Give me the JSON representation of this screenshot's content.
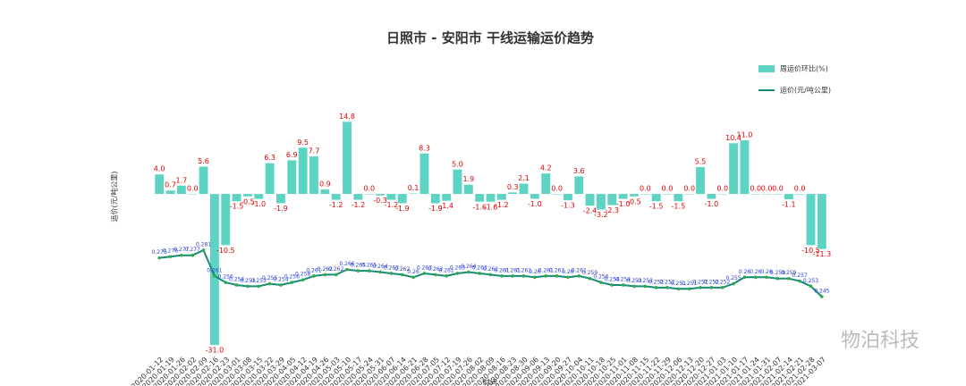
{
  "chart_data": {
    "type": "bar_line",
    "title": "日照市 - 安阳市 干线运输运价趋势",
    "ylabel": "运价(元/吨公里)",
    "xlabel": "时间",
    "watermark": "物泊科技",
    "x": [
      "2020-01-12",
      "2020-01-19",
      "2020-01-26",
      "2020-02-02",
      "2020-02-09",
      "2020-02-16",
      "2020-02-23",
      "2020-03-01",
      "2020-03-08",
      "2020-03-15",
      "2020-03-22",
      "2020-03-29",
      "2020-04-05",
      "2020-04-12",
      "2020-04-19",
      "2020-04-26",
      "2020-05-03",
      "2020-05-10",
      "2020-05-17",
      "2020-05-24",
      "2020-05-31",
      "2020-06-07",
      "2020-06-14",
      "2020-06-21",
      "2020-06-28",
      "2020-07-05",
      "2020-07-12",
      "2020-07-19",
      "2020-07-26",
      "2020-08-02",
      "2020-08-09",
      "2020-08-16",
      "2020-08-23",
      "2020-08-30",
      "2020-09-06",
      "2020-09-13",
      "2020-09-20",
      "2020-09-27",
      "2020-10-04",
      "2020-10-11",
      "2020-10-18",
      "2020-10-25",
      "2020-11-01",
      "2020-11-08",
      "2020-11-15",
      "2020-11-22",
      "2020-11-29",
      "2020-12-06",
      "2020-12-13",
      "2020-12-20",
      "2020-12-27",
      "2021-01-03",
      "2021-01-10",
      "2021-01-17",
      "2021-01-24",
      "2021-01-31",
      "2021-02-07",
      "2021-02-14",
      "2021-02-21",
      "2021-02-28",
      "2021-03-07"
    ],
    "ylim": [
      -33,
      20
    ],
    "y2lim": [
      0.2,
      0.4
    ],
    "legend": "upper right",
    "series": [
      {
        "name": "周运价环比(%)",
        "color": "#5dd3c4",
        "type": "bar",
        "values": [
          4.0,
          0.7,
          1.7,
          0.0,
          5.6,
          -31.0,
          -10.5,
          -1.5,
          -0.5,
          -1.0,
          6.3,
          -1.9,
          6.9,
          9.5,
          7.7,
          0.9,
          -1.2,
          14.8,
          -1.2,
          0.0,
          -0.3,
          -1.2,
          -1.9,
          0.1,
          8.3,
          -1.9,
          -1.4,
          5.0,
          1.9,
          -1.6,
          -1.6,
          -1.2,
          0.3,
          2.1,
          -1.0,
          4.2,
          0.0,
          -1.3,
          3.6,
          -2.4,
          -3.2,
          -2.3,
          -1.0,
          -0.5,
          0.0,
          -1.5,
          0.0,
          -1.5,
          0.0,
          5.5,
          -1.0,
          0.0,
          10.4,
          11.0,
          0.0,
          0.0,
          0.0,
          -1.1,
          0.0,
          -10.5,
          -11.3
        ],
        "value_labels": [
          "4.0",
          "0.7",
          "1.7",
          "0.0",
          "5.6",
          "-31.0",
          "-10.5",
          "-1.5",
          "-0.5",
          "-1.0",
          "6.3",
          "-1.9",
          "6.9",
          "9.5",
          "7.7",
          "0.9",
          "-1.2",
          "14.8",
          "-1.2",
          "0.0",
          "-0.3",
          "-1.2",
          "-1.9",
          "0.1",
          "8.3",
          "-1.9",
          "-1.4",
          "5.0",
          "1.9",
          "-1.6",
          "-1.6",
          "-1.2",
          "0.3",
          "2.1",
          "-1.0",
          "4.2",
          "0.0",
          "-1.3",
          "3.6",
          "-2.4",
          "-3.2",
          "-2.3",
          "-1.0",
          "-0.5",
          "0.0",
          "-1.5",
          "0.0",
          "-1.5",
          "0.0",
          "5.5",
          "-1.0",
          "0.0",
          "10.4",
          "11.0",
          "0.0",
          "0.0",
          "0.0",
          "-1.1",
          "0.0",
          "-10.5",
          "-11.3"
        ]
      },
      {
        "name": "运价(元/吨公里)",
        "color": "#178a78",
        "type": "line",
        "axis": "y2",
        "values": [
          0.275,
          0.276,
          0.277,
          0.277,
          0.281,
          0.261,
          0.256,
          0.254,
          0.253,
          0.253,
          0.255,
          0.254,
          0.256,
          0.258,
          0.261,
          0.262,
          0.262,
          0.266,
          0.265,
          0.265,
          0.264,
          0.263,
          0.262,
          0.26,
          0.263,
          0.262,
          0.261,
          0.263,
          0.264,
          0.263,
          0.262,
          0.261,
          0.261,
          0.261,
          0.26,
          0.261,
          0.261,
          0.26,
          0.261,
          0.259,
          0.256,
          0.254,
          0.254,
          0.253,
          0.253,
          0.252,
          0.252,
          0.251,
          0.251,
          0.252,
          0.252,
          0.252,
          0.255,
          0.26,
          0.26,
          0.26,
          0.259,
          0.259,
          0.257,
          0.253,
          0.245
        ]
      }
    ]
  }
}
